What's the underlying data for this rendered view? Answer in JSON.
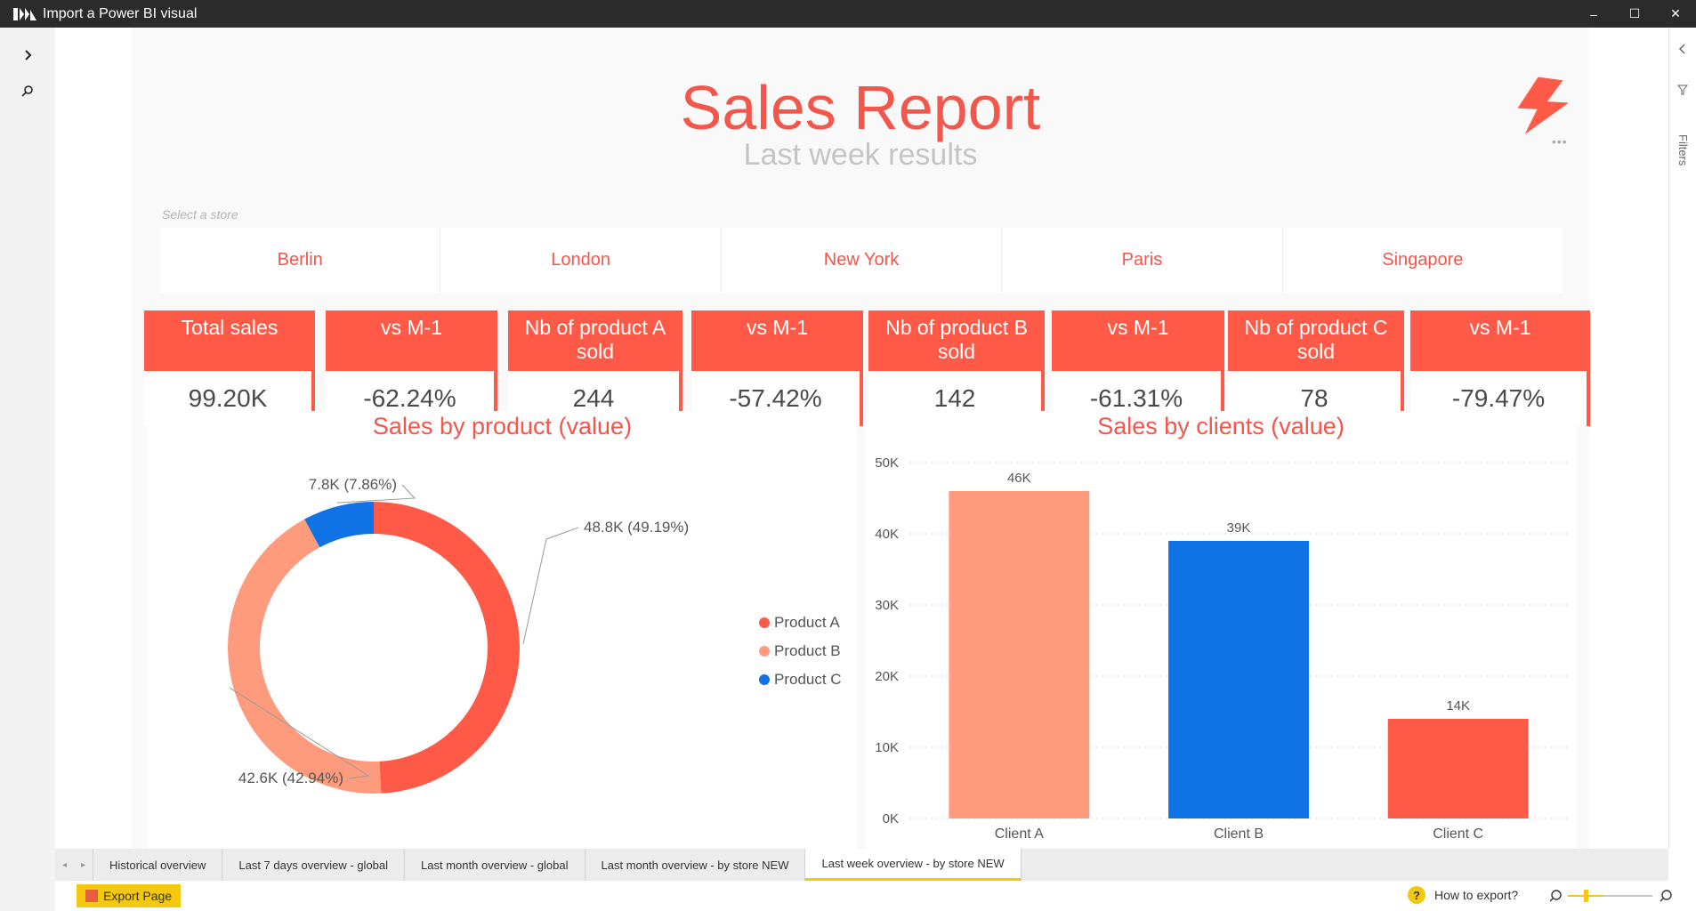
{
  "window": {
    "title": "Import a Power BI visual",
    "controls": [
      "–",
      "☐",
      "✕"
    ]
  },
  "left_rail": {
    "icons": [
      "chevron-right-icon",
      "search-icon"
    ]
  },
  "report": {
    "title": "Sales Report",
    "subtitle": "Last week results",
    "slicer": {
      "label": "Select a store",
      "items": [
        "Berlin",
        "London",
        "New York",
        "Paris",
        "Singapore"
      ]
    },
    "kpis": [
      {
        "label": "Total sales",
        "value": "99.20K"
      },
      {
        "label": "vs M-1",
        "value": "-62.24%"
      },
      {
        "label": "Nb of product A sold",
        "value": "244"
      },
      {
        "label": "vs M-1",
        "value": "-57.42%"
      },
      {
        "label": "Nb of product B sold",
        "value": "142"
      },
      {
        "label": "vs M-1",
        "value": "-61.31%"
      },
      {
        "label": "Nb of product C sold",
        "value": "78"
      },
      {
        "label": "vs M-1",
        "value": "-79.47%"
      }
    ],
    "colors": {
      "accent": "#ff5a47",
      "product_a": "#ff5a47",
      "product_b": "#ff9b7d",
      "product_c": "#0f72e5"
    }
  },
  "right_rail": {
    "filters_label": "Filters"
  },
  "chart_data": [
    {
      "type": "pie",
      "donut": true,
      "title": "Sales by product (value)",
      "categories": [
        "Product A",
        "Product B",
        "Product C"
      ],
      "values": [
        48.8,
        42.6,
        7.8
      ],
      "data_labels": [
        "48.8K (49.19%)",
        "42.6K (42.94%)",
        "7.8K (7.86%)"
      ],
      "colors": [
        "#ff5a47",
        "#ff9b7d",
        "#0f72e5"
      ],
      "legend": "right"
    },
    {
      "type": "bar",
      "title": "Sales by clients (value)",
      "categories": [
        "Client A",
        "Client B",
        "Client C"
      ],
      "values": [
        46,
        39,
        14
      ],
      "data_labels": [
        "46K",
        "39K",
        "14K"
      ],
      "colors": [
        "#ff9b7d",
        "#0f72e5",
        "#ff5a47"
      ],
      "yticks": [
        "0K",
        "10K",
        "20K",
        "30K",
        "40K",
        "50K"
      ],
      "ylim": [
        0,
        50
      ],
      "grid": true
    }
  ],
  "tabs": [
    {
      "label": "Historical overview",
      "active": false
    },
    {
      "label": "Last 7 days overview - global",
      "active": false
    },
    {
      "label": "Last month overview - global",
      "active": false
    },
    {
      "label": "Last month overview - by store NEW",
      "active": false
    },
    {
      "label": "Last week overview - by store NEW",
      "active": true
    }
  ],
  "status": {
    "export_label": "Export Page",
    "help_label": "How to export?",
    "help_glyph": "?"
  }
}
